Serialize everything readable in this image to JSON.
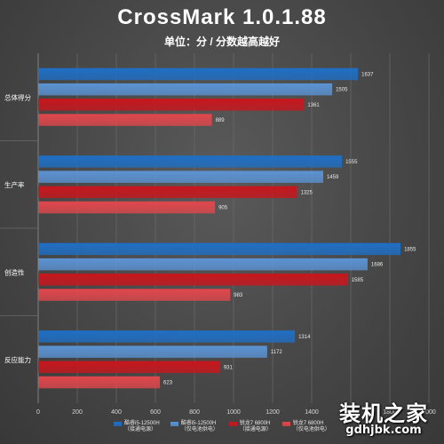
{
  "chart_data": {
    "type": "bar",
    "orientation": "horizontal",
    "title": "CrossMark 1.0.1.88",
    "subtitle": "单位：分 / 分数越高越好",
    "categories": [
      "总体得分",
      "生产率",
      "创造性",
      "反应能力"
    ],
    "xlim": [
      0,
      2000
    ],
    "xticks": [
      0,
      200,
      400,
      600,
      800,
      1000,
      1200,
      1400,
      1600,
      1800,
      2000
    ],
    "grid": true,
    "legend_position": "bottom",
    "series": [
      {
        "name": "酷睿i5-12500H",
        "name_sub": "（接通电源）",
        "color": "#1f6fc5",
        "values": [
          1637,
          1555,
          1855,
          1314
        ]
      },
      {
        "name": "酷睿i5-12500H",
        "name_sub": "（仅电池供电）",
        "color": "#5b93d3",
        "values": [
          1505,
          1459,
          1686,
          1172
        ]
      },
      {
        "name": "锐龙7 6800H",
        "name_sub": "（接通电源）",
        "color": "#c8161d",
        "values": [
          1361,
          1325,
          1585,
          931
        ]
      },
      {
        "name": "锐龙7 6800H",
        "name_sub": "（仅电池供电）",
        "color": "#e0474c",
        "values": [
          889,
          905,
          983,
          623
        ]
      }
    ]
  },
  "watermark": {
    "logo": "装机之家",
    "url": "gdhjbk.com"
  }
}
